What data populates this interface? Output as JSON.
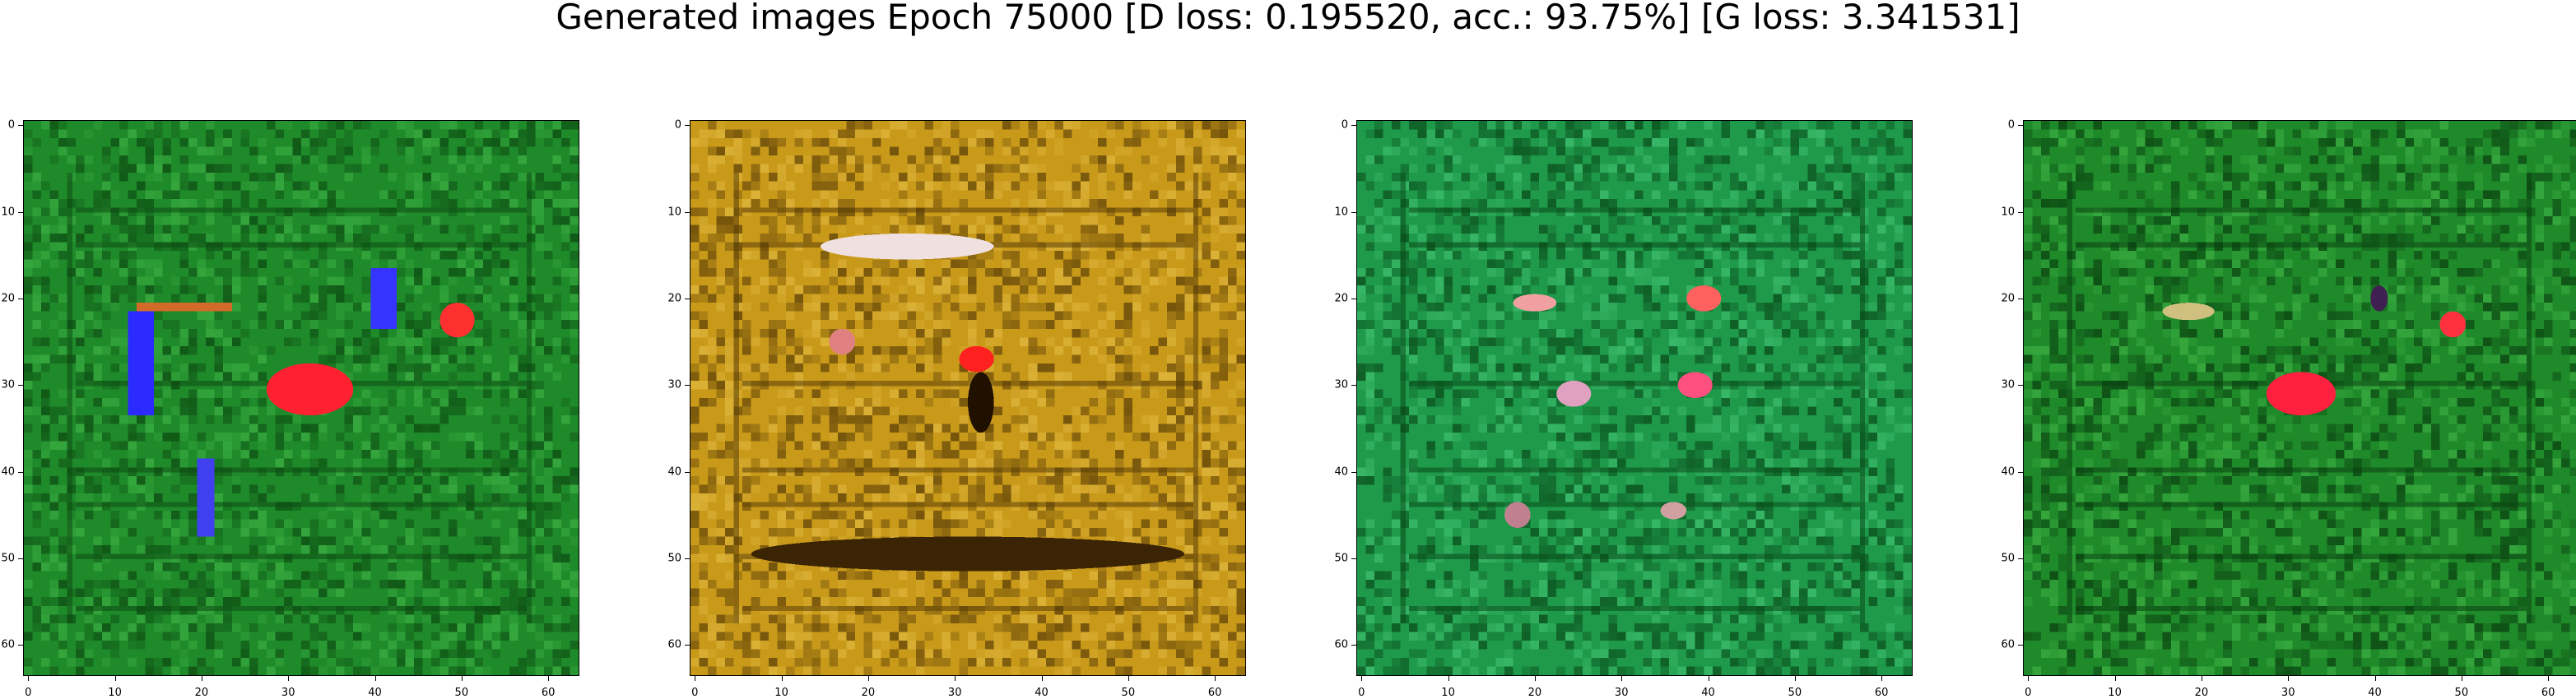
{
  "figure": {
    "title": "Generated images Epoch 75000 [D loss: 0.195520, acc.: 93.75%] [G loss: 3.341531]"
  },
  "axis": {
    "xlim": [
      -0.5,
      63.5
    ],
    "ylim": [
      63.5,
      -0.5
    ],
    "ticks": [
      0,
      10,
      20,
      30,
      40,
      50,
      60
    ]
  },
  "panels": [
    {
      "name": "sample-1",
      "palette": {
        "base": "#1f8a2a",
        "dark": "#0d4a12",
        "light": "#3cb043"
      },
      "features": [
        {
          "kind": "streak",
          "color": "#2b2bff",
          "x": 12,
          "y": 22,
          "w": 3,
          "h": 12
        },
        {
          "kind": "streak",
          "color": "#4040ee",
          "x": 20,
          "y": 39,
          "w": 2,
          "h": 9
        },
        {
          "kind": "streak",
          "color": "#3535ff",
          "x": 40,
          "y": 17,
          "w": 3,
          "h": 7
        },
        {
          "kind": "blob",
          "color": "#ff2030",
          "x": 28,
          "y": 28,
          "w": 10,
          "h": 6
        },
        {
          "kind": "blob",
          "color": "#ff3030",
          "x": 48,
          "y": 21,
          "w": 4,
          "h": 4
        },
        {
          "kind": "streak",
          "color": "#d26a2a",
          "x": 13,
          "y": 21,
          "w": 11,
          "h": 1
        }
      ]
    },
    {
      "name": "sample-2",
      "palette": {
        "base": "#c99a1a",
        "dark": "#5a3e08",
        "light": "#e0b840"
      },
      "features": [
        {
          "kind": "blob",
          "color": "#3a2404",
          "x": 7,
          "y": 48,
          "w": 50,
          "h": 4
        },
        {
          "kind": "blob",
          "color": "#f0e0e0",
          "x": 15,
          "y": 13,
          "w": 20,
          "h": 3
        },
        {
          "kind": "blob",
          "color": "#e08080",
          "x": 16,
          "y": 24,
          "w": 3,
          "h": 3
        },
        {
          "kind": "blob",
          "color": "#ff2020",
          "x": 31,
          "y": 26,
          "w": 4,
          "h": 3
        },
        {
          "kind": "blob",
          "color": "#201000",
          "x": 32,
          "y": 29,
          "w": 3,
          "h": 7
        }
      ]
    },
    {
      "name": "sample-3",
      "palette": {
        "base": "#1e9a4a",
        "dark": "#0a4a1a",
        "light": "#40c070"
      },
      "features": [
        {
          "kind": "blob",
          "color": "#f0a0a0",
          "x": 18,
          "y": 20,
          "w": 5,
          "h": 2
        },
        {
          "kind": "blob",
          "color": "#ff6060",
          "x": 38,
          "y": 19,
          "w": 4,
          "h": 3
        },
        {
          "kind": "blob",
          "color": "#e0a0c0",
          "x": 23,
          "y": 30,
          "w": 4,
          "h": 3
        },
        {
          "kind": "blob",
          "color": "#ff5080",
          "x": 37,
          "y": 29,
          "w": 4,
          "h": 3
        },
        {
          "kind": "blob",
          "color": "#c08090",
          "x": 17,
          "y": 44,
          "w": 3,
          "h": 3
        },
        {
          "kind": "blob",
          "color": "#d0a0a0",
          "x": 35,
          "y": 44,
          "w": 3,
          "h": 2
        }
      ]
    },
    {
      "name": "sample-4",
      "palette": {
        "base": "#1f8a2a",
        "dark": "#0a3f10",
        "light": "#3cb043"
      },
      "features": [
        {
          "kind": "blob",
          "color": "#ff2040",
          "x": 28,
          "y": 29,
          "w": 8,
          "h": 5
        },
        {
          "kind": "blob",
          "color": "#ff3040",
          "x": 48,
          "y": 22,
          "w": 3,
          "h": 3
        },
        {
          "kind": "blob",
          "color": "#d0c080",
          "x": 16,
          "y": 21,
          "w": 6,
          "h": 2
        },
        {
          "kind": "blob",
          "color": "#402050",
          "x": 40,
          "y": 19,
          "w": 2,
          "h": 3
        }
      ]
    }
  ]
}
